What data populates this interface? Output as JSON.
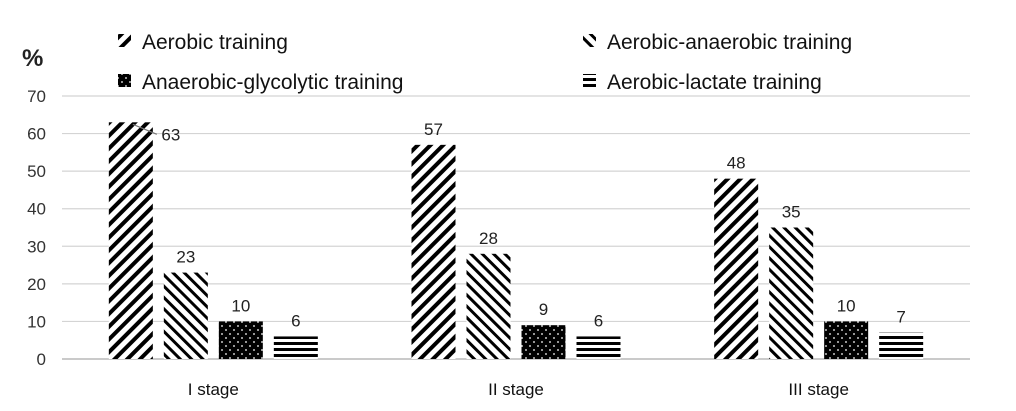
{
  "chart_data": {
    "type": "bar",
    "ylabel": "%",
    "ylim": [
      0,
      70
    ],
    "yticks": [
      0,
      10,
      20,
      30,
      40,
      50,
      60,
      70
    ],
    "grid": true,
    "legend_position": "top",
    "categories": [
      "I stage",
      "II stage",
      "III stage"
    ],
    "series": [
      {
        "name": "Aerobic training",
        "values": [
          63,
          57,
          48
        ],
        "pattern": "diagonal-back",
        "color": "#000000"
      },
      {
        "name": "Aerobic-anaerobic training",
        "values": [
          23,
          28,
          35
        ],
        "pattern": "diagonal-forward",
        "color": "#000000"
      },
      {
        "name": "Anaerobic-glycolytic training",
        "values": [
          10,
          9,
          10
        ],
        "pattern": "dots",
        "color": "#000000"
      },
      {
        "name": "Aerobic-lactate training",
        "values": [
          6,
          6,
          7
        ],
        "pattern": "horizontal",
        "color": "#000000"
      }
    ]
  }
}
